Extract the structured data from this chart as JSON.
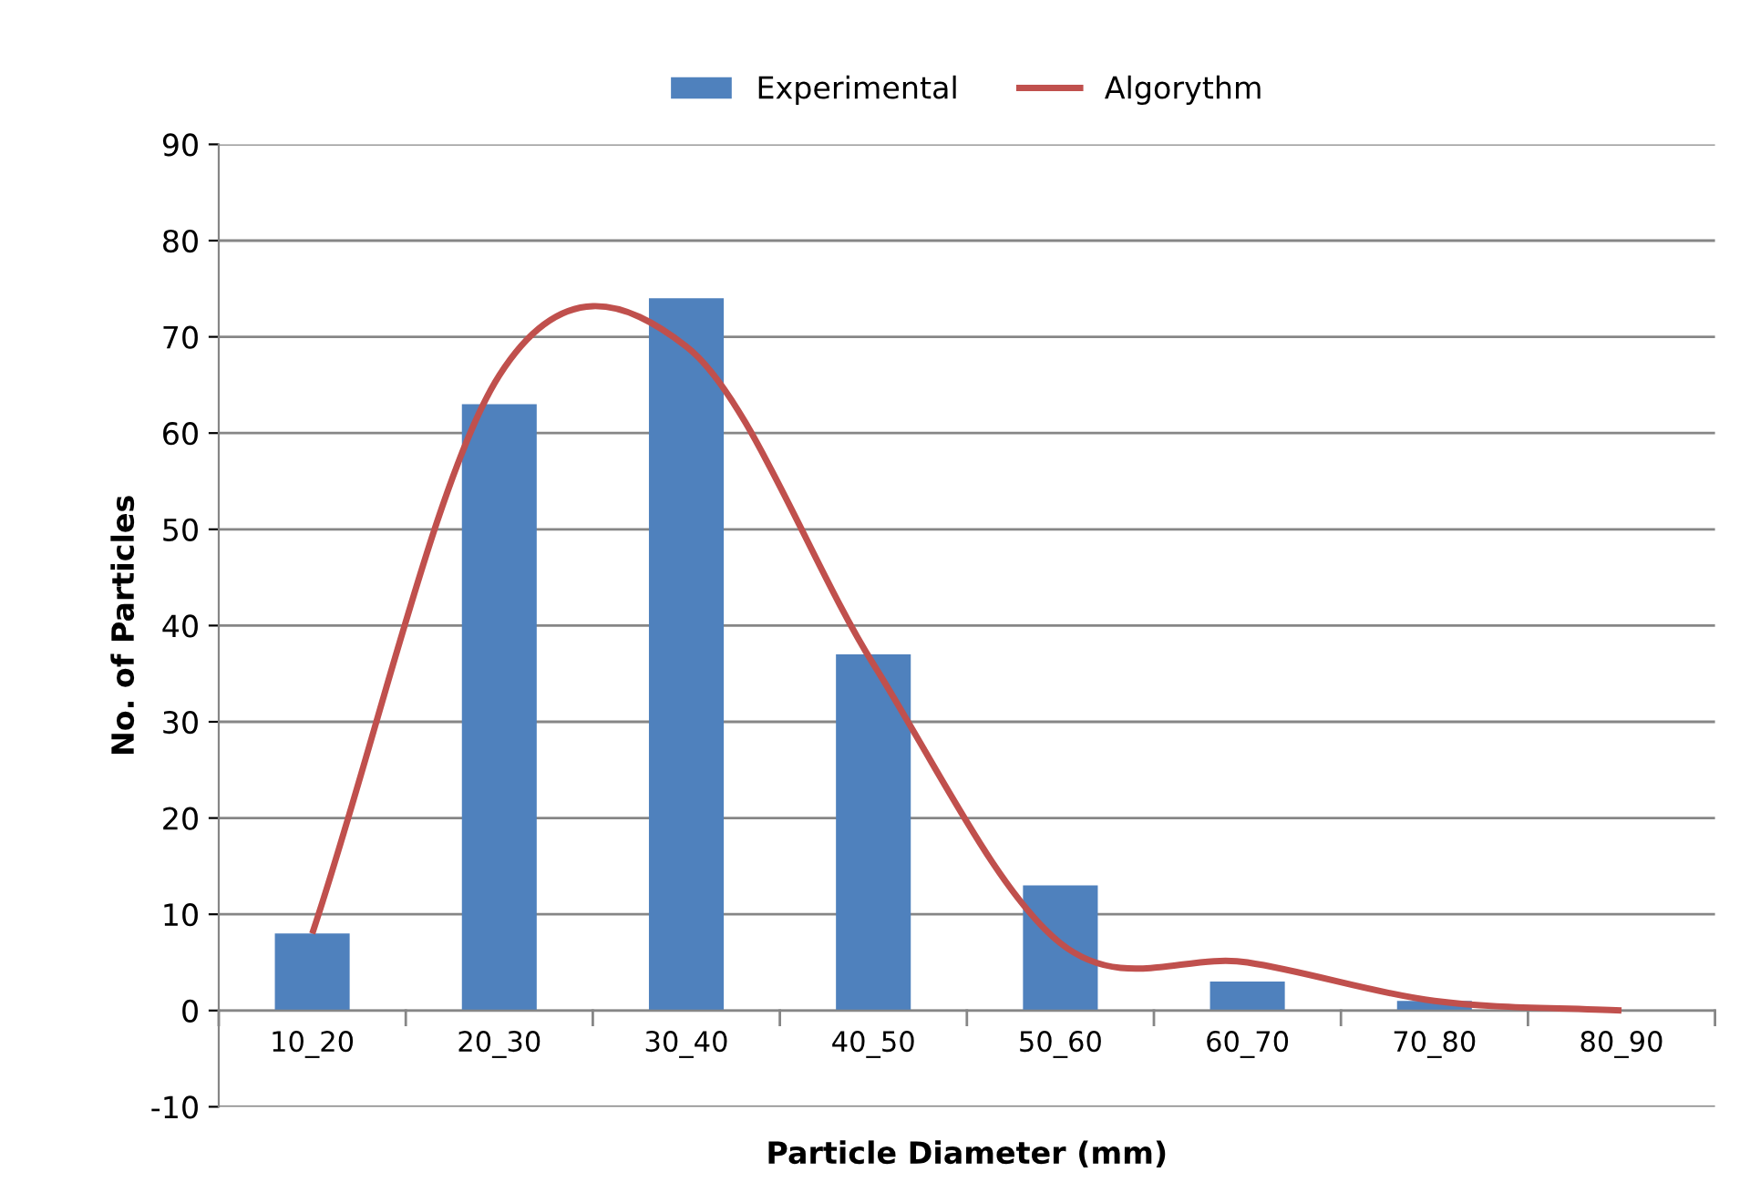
{
  "chart_data": {
    "type": "bar",
    "xlabel": "Particle Diameter (mm)",
    "ylabel": "No. of Particles",
    "categories": [
      "10_20",
      "20_30",
      "30_40",
      "40_50",
      "50_60",
      "60_70",
      "70_80",
      "80_90"
    ],
    "series": [
      {
        "name": "Experimental",
        "type": "bar",
        "color": "#4f81bd",
        "values": [
          8,
          63,
          74,
          37,
          13,
          3,
          1,
          0
        ]
      },
      {
        "name": "Algorythm",
        "type": "line",
        "color": "#c0504d",
        "values": [
          8,
          66,
          69,
          36,
          7,
          5,
          1,
          0
        ]
      }
    ],
    "ylim": [
      -10,
      90
    ],
    "yticks": [
      -10,
      0,
      10,
      20,
      30,
      40,
      50,
      60,
      70,
      80,
      90
    ],
    "grid": "y",
    "legend": "top"
  }
}
